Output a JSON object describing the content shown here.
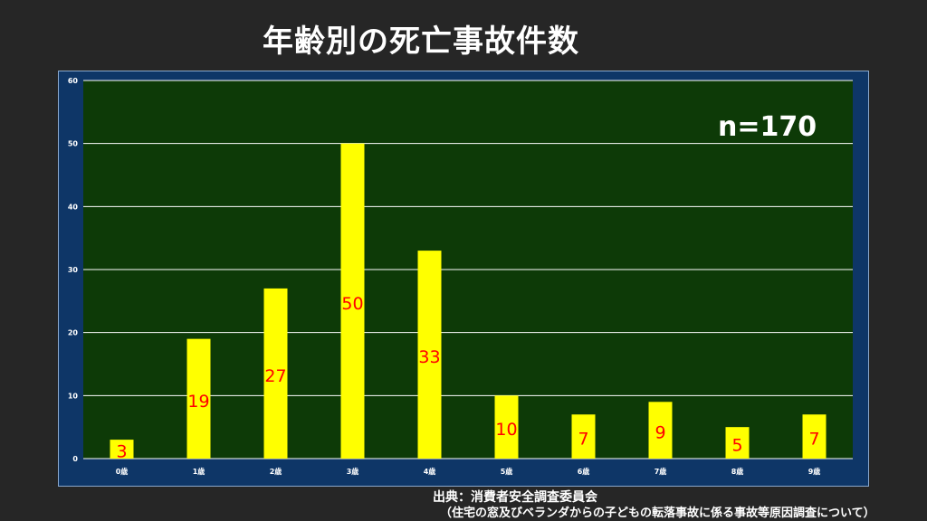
{
  "title": "年齢別の死亡事故件数",
  "annotation": "n=170",
  "source": {
    "line1": "出典：消費者安全調査委員会",
    "line2": "（住宅の窓及びベランダからの子どもの転落事故に係る事故等原因調査について）"
  },
  "colors": {
    "page_bg": "#262626",
    "frame_bg": "#0e3667",
    "plot_bg": "#0d3a07",
    "bar": "#ffff00",
    "data_label": "#ff0000",
    "grid": "#ffffff",
    "tick_text": "#ffffff"
  },
  "chart_data": {
    "type": "bar",
    "categories": [
      "0歳",
      "1歳",
      "2歳",
      "3歳",
      "4歳",
      "5歳",
      "6歳",
      "7歳",
      "8歳",
      "9歳"
    ],
    "values": [
      3,
      19,
      27,
      50,
      33,
      10,
      7,
      9,
      5,
      7
    ],
    "data_labels": [
      "3",
      "19",
      "27",
      "50",
      "33",
      "10",
      "7",
      "9",
      "5",
      "7"
    ],
    "ylim": [
      0,
      60
    ],
    "yticks": [
      0,
      10,
      20,
      30,
      40,
      50,
      60
    ],
    "grid": true,
    "legend": "none"
  }
}
